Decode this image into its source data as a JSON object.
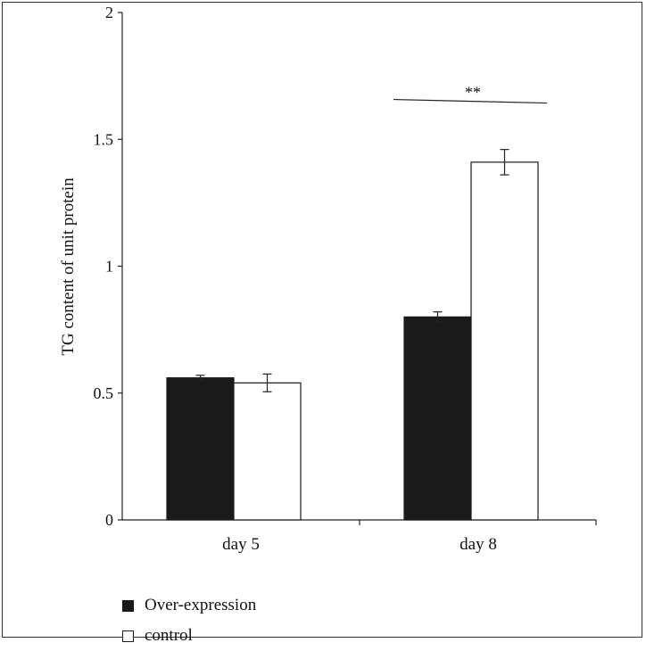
{
  "chart_data": {
    "type": "bar",
    "ylabel": "TG content of unit protein",
    "ylim": [
      0,
      2
    ],
    "yticks": [
      "0",
      "0.5",
      "1",
      "1.5",
      "2"
    ],
    "categories": [
      "day 5",
      "day 8"
    ],
    "series": [
      {
        "name": "Over-expression",
        "color": "#1a1a1a",
        "values": [
          0.56,
          0.8
        ],
        "errors": [
          0.01,
          0.02
        ]
      },
      {
        "name": "control",
        "color": "#ffffff",
        "values": [
          0.54,
          1.41
        ],
        "errors": [
          0.035,
          0.05
        ]
      }
    ],
    "annotations": [
      {
        "text": "**",
        "category": "day 8",
        "y": 1.65
      }
    ]
  }
}
